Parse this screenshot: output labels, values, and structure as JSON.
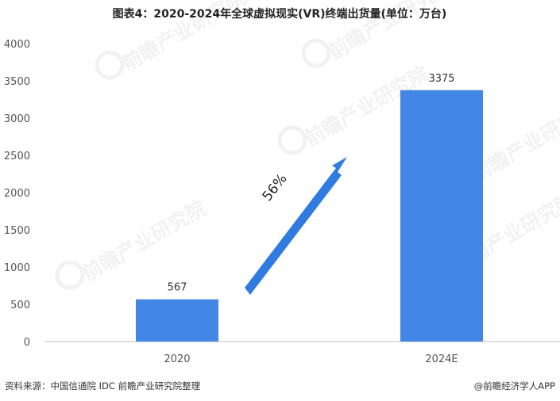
{
  "title": "图表4：2020-2024年全球虚拟现实(VR)终端出货量(单位：万台)",
  "colors": {
    "bar": "#4287e6",
    "arrow": "#2f7be0",
    "axis": "#bfbfbf"
  },
  "chart_data": {
    "type": "bar",
    "categories": [
      "2020",
      "2024E"
    ],
    "values": [
      567,
      3375
    ],
    "data_labels": [
      "567",
      "3375"
    ],
    "ylim": [
      0,
      4000
    ],
    "yticks": [
      0,
      500,
      1000,
      1500,
      2000,
      2500,
      3000,
      3500,
      4000
    ],
    "ytick_labels": [
      "0",
      "500",
      "1000",
      "1500",
      "2000",
      "2500",
      "3000",
      "3500",
      "4000"
    ],
    "grid": false,
    "annotations": [
      {
        "text": "56%",
        "type": "growth-arrow"
      }
    ]
  },
  "watermark": {
    "text": "前瞻产业研究院"
  },
  "footer": {
    "source": "资料来源：中国信通院 IDC 前瞻产业研究院整理",
    "brand": "@前瞻经济学人APP"
  }
}
